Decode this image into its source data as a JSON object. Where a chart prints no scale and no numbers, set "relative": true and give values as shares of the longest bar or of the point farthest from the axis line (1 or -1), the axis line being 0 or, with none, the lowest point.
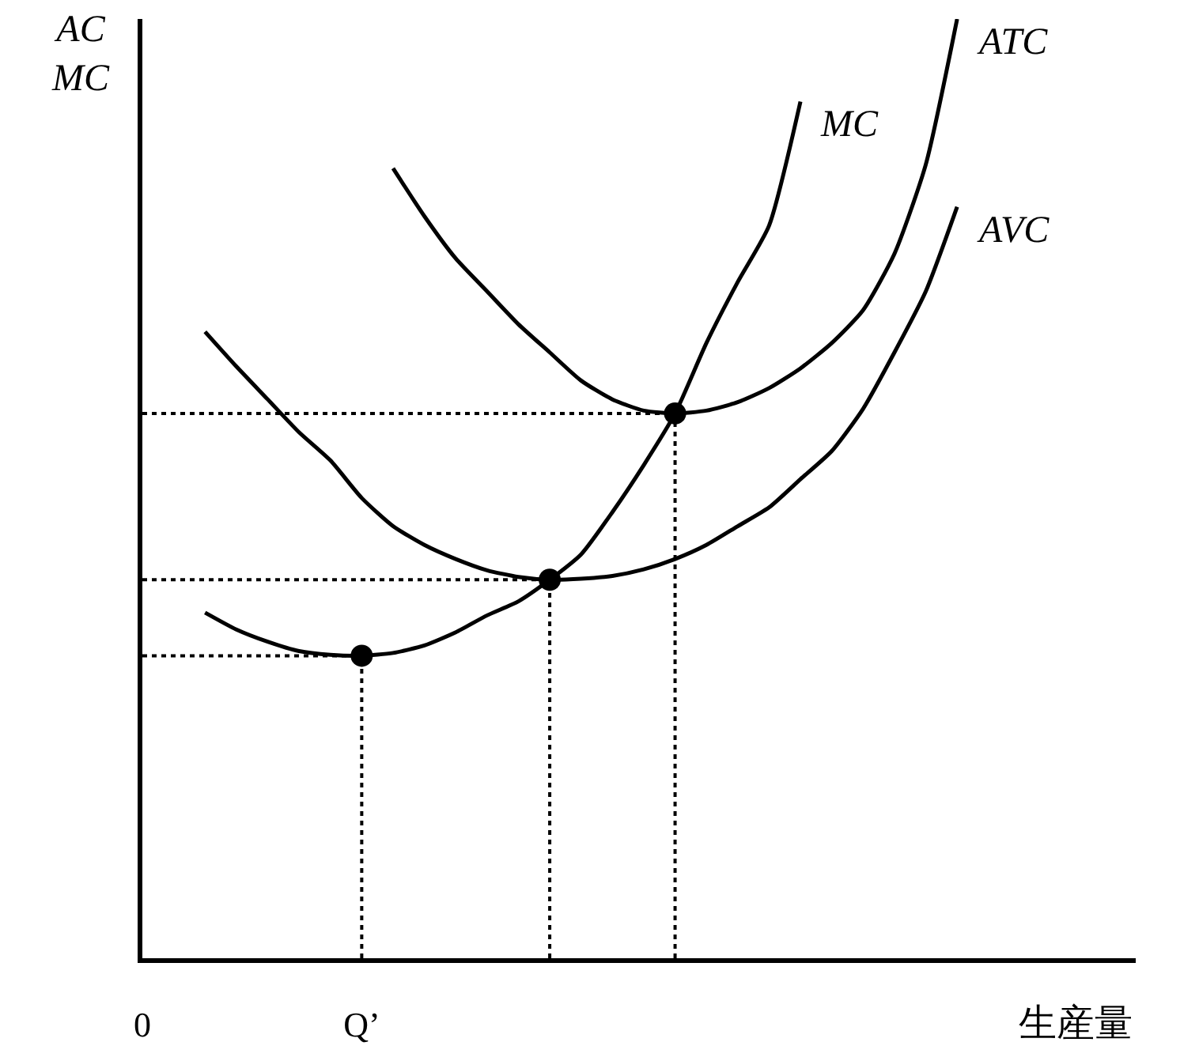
{
  "chart_data": {
    "type": "line",
    "relative": true,
    "xlabel": "生産量",
    "ylabel": "AC\nMC",
    "grid": false,
    "legend": false,
    "marker": "none",
    "line_style": "solid",
    "categories": [
      "0",
      null,
      null,
      null,
      null,
      null,
      null,
      "Q’",
      null,
      null,
      null,
      null,
      null,
      null,
      null,
      null,
      null,
      null,
      null,
      null,
      null,
      null,
      null,
      null,
      null,
      null,
      null,
      null,
      null,
      null,
      null,
      null
    ],
    "series": [
      {
        "name": "MC",
        "color": "#000000",
        "values": [
          null,
          null,
          0.368,
          0.35,
          0.337,
          0.327,
          0.323,
          0.322,
          0.325,
          0.333,
          0.347,
          0.365,
          0.38,
          0.403,
          0.43,
          0.475,
          0.525,
          0.58,
          0.655,
          0.72,
          0.78,
          0.912,
          null,
          null,
          null,
          null,
          null,
          null,
          null,
          null,
          null,
          null
        ]
      },
      {
        "name": "AVC",
        "color": "#000000",
        "values": [
          null,
          null,
          0.667,
          0.63,
          0.595,
          0.56,
          0.53,
          0.49,
          0.46,
          0.44,
          0.425,
          0.413,
          0.406,
          0.403,
          0.404,
          0.407,
          0.414,
          0.425,
          0.44,
          0.46,
          0.48,
          0.51,
          0.54,
          0.585,
          0.645,
          0.71,
          0.8,
          null,
          null,
          null,
          null,
          null
        ]
      },
      {
        "name": "ATC",
        "color": "#000000",
        "values": [
          null,
          null,
          null,
          null,
          null,
          null,
          null,
          null,
          0.841,
          0.79,
          0.745,
          0.71,
          0.675,
          0.645,
          0.615,
          0.595,
          0.583,
          0.58,
          0.583,
          0.592,
          0.607,
          0.628,
          0.655,
          0.69,
          0.75,
          0.845,
          1.0,
          null,
          null,
          null,
          null,
          null
        ]
      },
      {
        "color": "#000000",
        "line_style": "dotted",
        "values": [
          0.322,
          0.322,
          0.322,
          0.322,
          0.322,
          0.322,
          0.322,
          0.322,
          null,
          null,
          null,
          null,
          null,
          null,
          null,
          null,
          null,
          null,
          null,
          null,
          null,
          null,
          null,
          null,
          null,
          null,
          null,
          null,
          null,
          null,
          null,
          null
        ]
      },
      {
        "color": "#000000",
        "line_style": "dotted",
        "values": [
          0.403,
          0.403,
          0.403,
          0.403,
          0.403,
          0.403,
          0.403,
          0.403,
          0.403,
          0.403,
          0.403,
          0.403,
          0.403,
          0.403,
          null,
          null,
          null,
          null,
          null,
          null,
          null,
          null,
          null,
          null,
          null,
          null,
          null,
          null,
          null,
          null,
          null,
          null
        ]
      },
      {
        "color": "#000000",
        "line_style": "dotted",
        "values": [
          0.58,
          0.58,
          0.58,
          0.58,
          0.58,
          0.58,
          0.58,
          0.58,
          0.58,
          0.58,
          0.58,
          0.58,
          0.58,
          0.58,
          0.58,
          0.58,
          0.58,
          0.58,
          null,
          null,
          null,
          null,
          null,
          null,
          null,
          null,
          null,
          null,
          null,
          null,
          null,
          null
        ]
      },
      {
        "type": "lollipop",
        "marker": "circle",
        "line_style": "dotted",
        "color": "#000000",
        "values": [
          null,
          null,
          null,
          null,
          null,
          null,
          null,
          0.322,
          null,
          null,
          null,
          null,
          null,
          0.403,
          null,
          null,
          null,
          0.58,
          null,
          null,
          null,
          null,
          null,
          null,
          null,
          null,
          null,
          null,
          null,
          null,
          null,
          null
        ]
      }
    ]
  }
}
